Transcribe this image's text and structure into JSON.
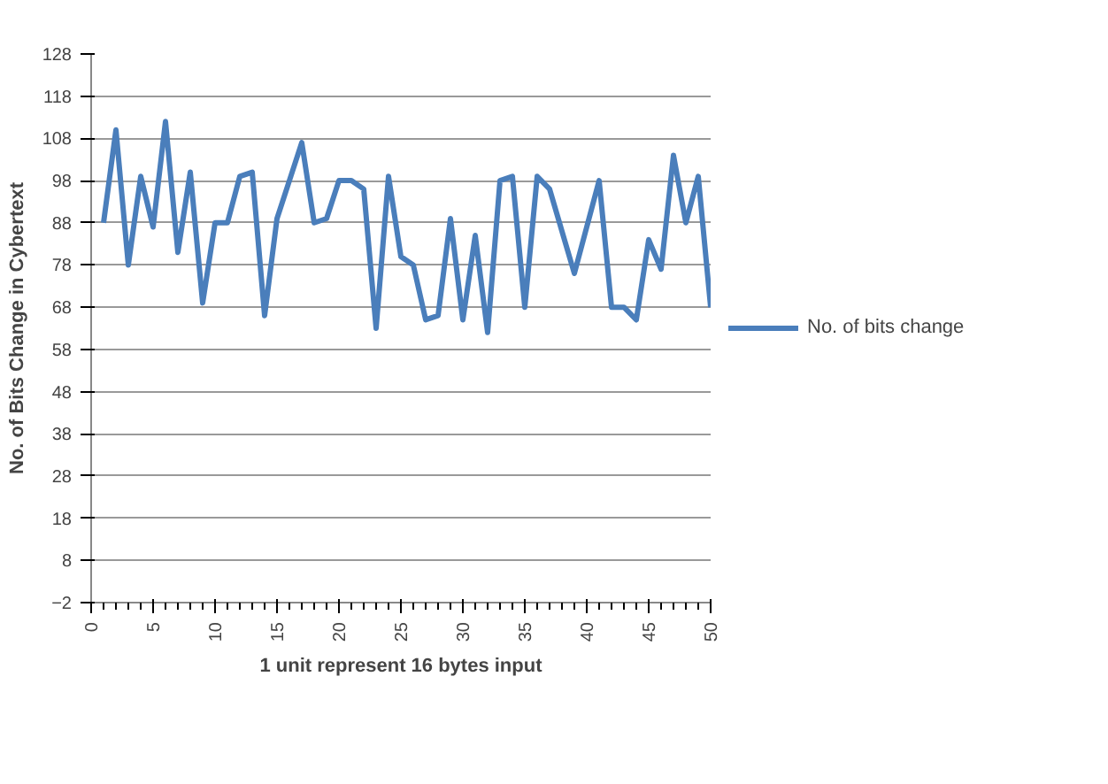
{
  "chart_data": {
    "type": "line",
    "xlabel": "1 unit represent 16 bytes input",
    "ylabel": "No. of Bits Change in Cybertext",
    "x": [
      1,
      2,
      3,
      4,
      5,
      6,
      7,
      8,
      9,
      10,
      11,
      12,
      13,
      14,
      15,
      16,
      17,
      18,
      19,
      20,
      21,
      22,
      23,
      24,
      25,
      26,
      27,
      28,
      29,
      30,
      31,
      32,
      33,
      34,
      35,
      36,
      37,
      38,
      39,
      40,
      41,
      42,
      43,
      44,
      45,
      46,
      47,
      48,
      49,
      50
    ],
    "series": [
      {
        "name": "No. of bits change",
        "color": "#4a7ebb",
        "values": [
          88,
          110,
          78,
          99,
          87,
          112,
          81,
          100,
          69,
          88,
          88,
          99,
          100,
          66,
          89,
          98,
          107,
          88,
          89,
          98,
          98,
          96,
          63,
          99,
          80,
          78,
          65,
          66,
          89,
          65,
          85,
          62,
          98,
          99,
          68,
          99,
          96,
          86,
          76,
          87,
          98,
          68,
          68,
          65,
          84,
          77,
          104,
          88,
          99,
          68
        ]
      }
    ],
    "xlim": [
      0,
      50
    ],
    "xticks": [
      0,
      5,
      10,
      15,
      20,
      25,
      30,
      35,
      40,
      45,
      50
    ],
    "ylim": [
      -2,
      128
    ],
    "yticks": [
      -2,
      8,
      18,
      28,
      38,
      48,
      58,
      68,
      78,
      88,
      98,
      108,
      118,
      128
    ],
    "grid": "y",
    "legend": "right",
    "marker": "none",
    "line_style": "solid"
  }
}
